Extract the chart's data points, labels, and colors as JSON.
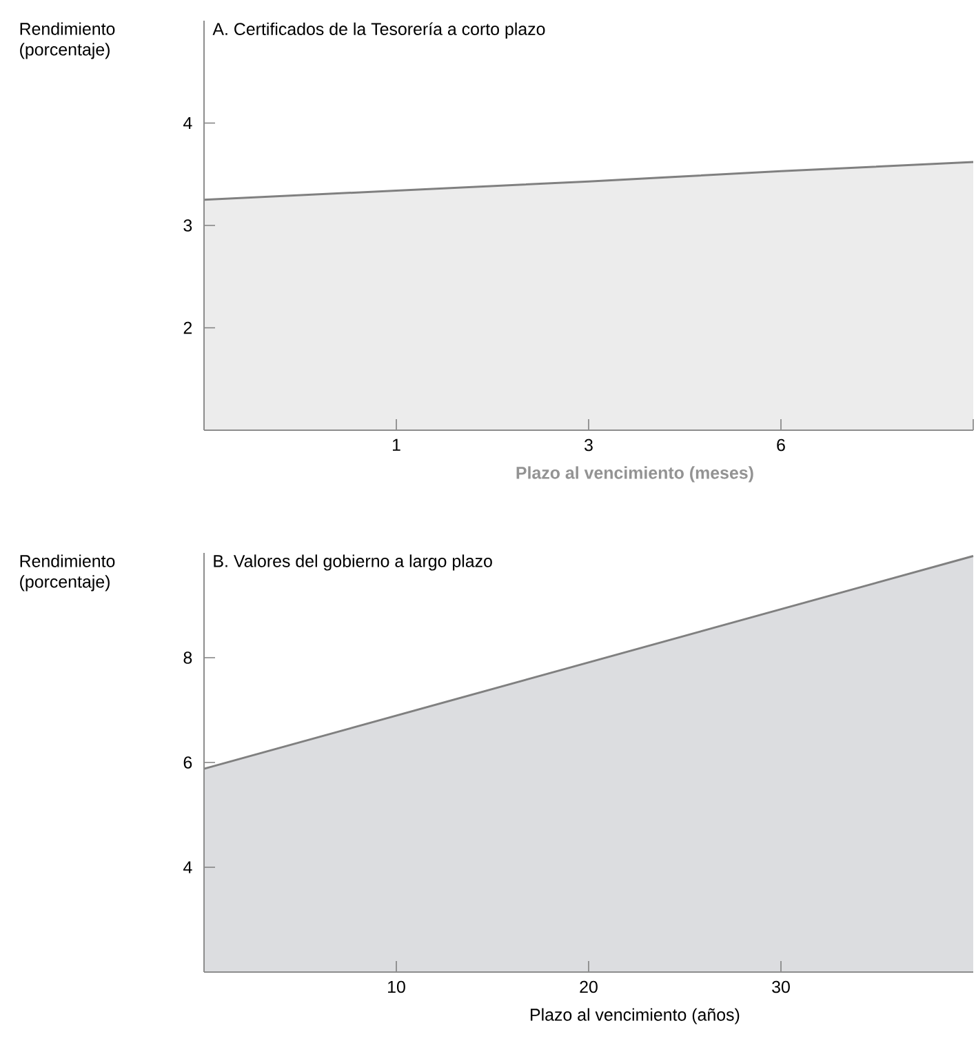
{
  "chart_data": [
    {
      "type": "area",
      "title": "A. Certificados de la Tesorería a corto plazo",
      "ylabel": "Rendimiento (porcentaje)",
      "xlabel": "Plazo al vencimiento (meses)",
      "categories": [
        null,
        "1",
        "3",
        "6",
        null
      ],
      "ylim": [
        1,
        5
      ],
      "yticks": [
        2,
        3,
        4
      ],
      "series": [
        {
          "color": "#ececec",
          "values": [
            3.25,
            3.34,
            3.43,
            3.53,
            3.62
          ]
        }
      ]
    },
    {
      "type": "area",
      "title": "B. Valores del gobierno a largo plazo",
      "ylabel": "Rendimiento (porcentaje)",
      "xlabel": "Plazo al vencimiento (años)",
      "x": [
        0,
        40
      ],
      "xlim": [
        0,
        40
      ],
      "xticks": [
        10,
        20,
        30
      ],
      "ylim": [
        2,
        10
      ],
      "yticks": [
        4,
        6,
        8
      ],
      "series": [
        {
          "color": "#dcdde0",
          "values": [
            5.88,
            9.94
          ]
        }
      ]
    }
  ]
}
